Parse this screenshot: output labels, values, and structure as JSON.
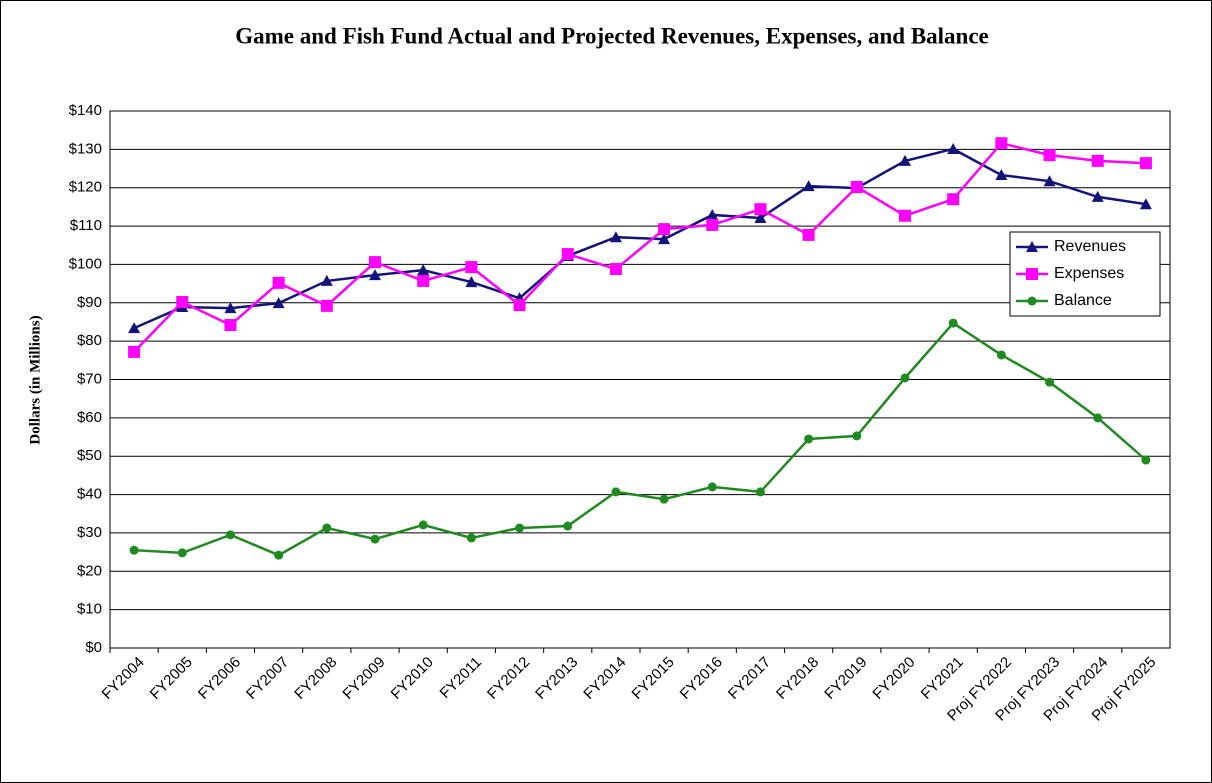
{
  "chart_data": {
    "type": "line",
    "title": "Game and Fish Fund Actual and Projected Revenues, Expenses, and Balance",
    "y_label": "Dollars    (in Millions)",
    "categories": [
      "FY2004",
      "FY2005",
      "FY2006",
      "FY2007",
      "FY2008",
      "FY2009",
      "FY2010",
      "FY2011",
      "FY2012",
      "FY2013",
      "FY2014",
      "FY2015",
      "FY2016",
      "FY2017",
      "FY2018",
      "FY2019",
      "FY2020",
      "FY2021",
      "Proj FY2022",
      "Proj FY2023",
      "Proj FY2024",
      "Proj FY2025"
    ],
    "series": [
      {
        "name": "Revenues",
        "color": "#14137a",
        "marker": "triangle",
        "values": [
          83.4,
          88.9,
          88.6,
          89.9,
          95.7,
          97.2,
          98.5,
          95.4,
          91.2,
          102.2,
          107.1,
          106.6,
          112.9,
          112.1,
          120.4,
          119.9,
          127.0,
          130.1,
          123.3,
          121.7,
          117.6,
          115.7
        ]
      },
      {
        "name": "Expenses",
        "color": "#ff00ff",
        "marker": "square",
        "values": [
          77.2,
          90.2,
          84.2,
          95.2,
          89.2,
          100.6,
          95.7,
          99.3,
          89.4,
          102.7,
          98.8,
          109.2,
          110.3,
          114.4,
          107.7,
          120.2,
          112.7,
          117.0,
          131.6,
          128.5,
          127.0,
          126.4
        ]
      },
      {
        "name": "Balance",
        "color": "#1f8a1f",
        "marker": "circle",
        "values": [
          25.5,
          24.8,
          29.5,
          24.2,
          31.3,
          28.4,
          32.1,
          28.7,
          31.3,
          31.8,
          40.7,
          38.8,
          42.0,
          40.7,
          54.5,
          55.3,
          70.4,
          84.7,
          76.4,
          69.3,
          60.0,
          49.0
        ]
      }
    ],
    "ylim": [
      0,
      140
    ],
    "yticks": [
      {
        "value": 0,
        "label": "$0"
      },
      {
        "value": 10,
        "label": "$10"
      },
      {
        "value": 20,
        "label": "$20"
      },
      {
        "value": 30,
        "label": "$30"
      },
      {
        "value": 40,
        "label": "$40"
      },
      {
        "value": 50,
        "label": "$50"
      },
      {
        "value": 60,
        "label": "$60"
      },
      {
        "value": 70,
        "label": "$70"
      },
      {
        "value": 80,
        "label": "$80"
      },
      {
        "value": 90,
        "label": "$90"
      },
      {
        "value": 100,
        "label": "$100"
      },
      {
        "value": 110,
        "label": "$110"
      },
      {
        "value": 120,
        "label": "$120"
      },
      {
        "value": 130,
        "label": "$130"
      },
      {
        "value": 140,
        "label": "$140"
      }
    ],
    "grid": true,
    "legend": "right"
  }
}
